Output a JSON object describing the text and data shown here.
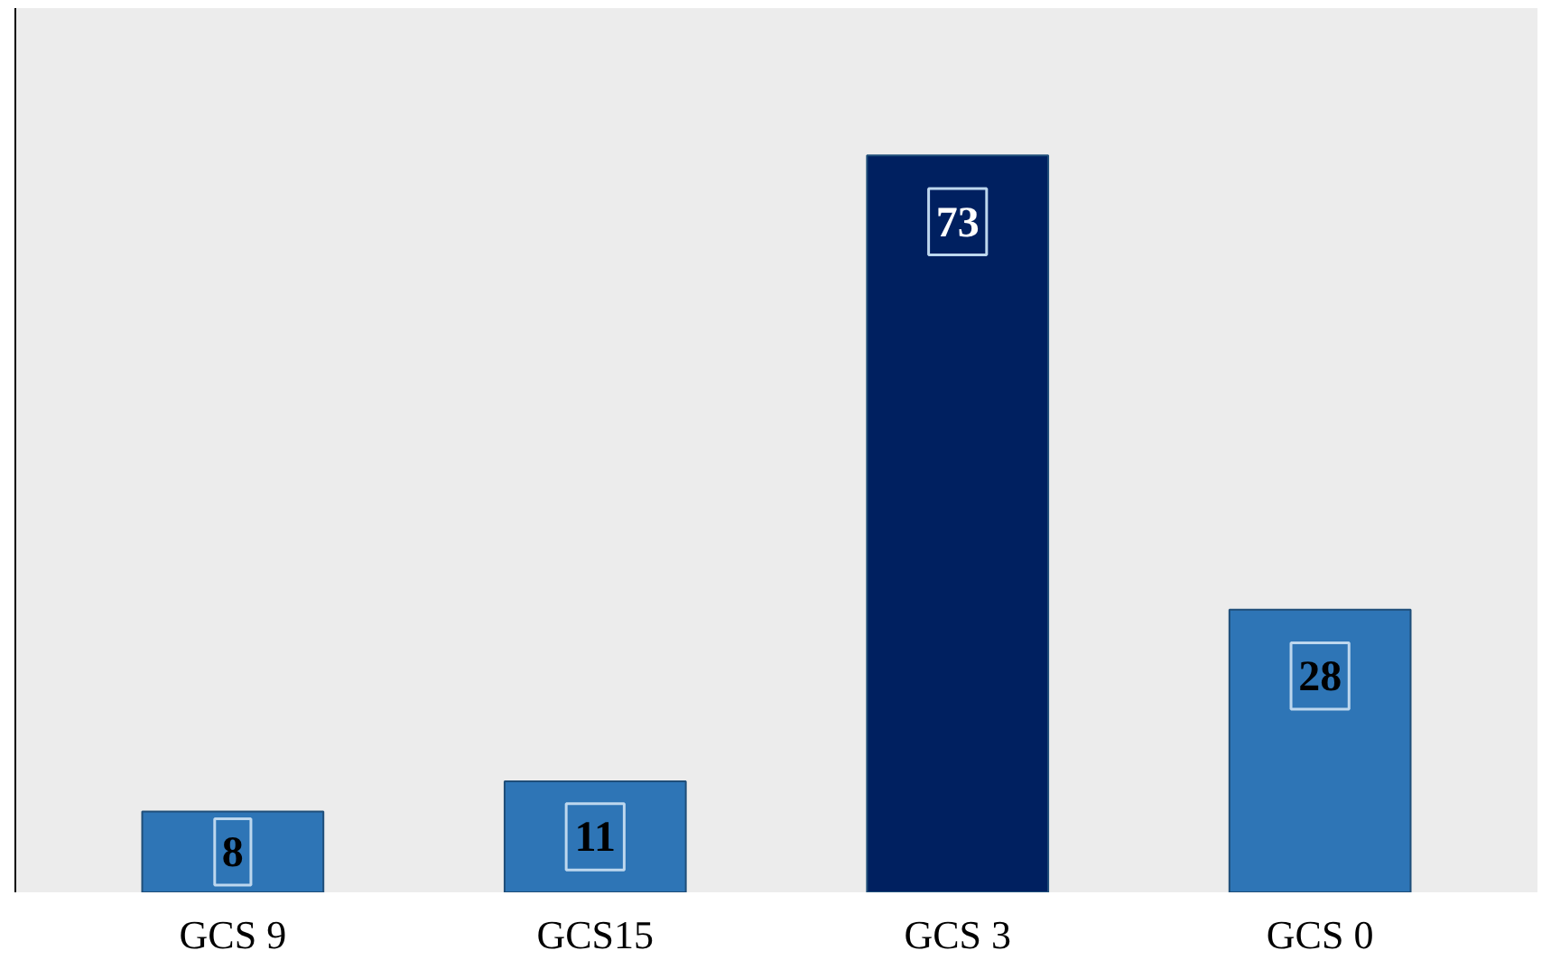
{
  "chart_data": {
    "type": "bar",
    "categories": [
      "GCS 9",
      "GCS15",
      "GCS 3",
      "GCS 0"
    ],
    "values": [
      8,
      11,
      73,
      28
    ],
    "colors": [
      "#2e75b6",
      "#2e75b6",
      "#002060",
      "#2e75b6"
    ],
    "data_labels": true,
    "grid": false
  }
}
